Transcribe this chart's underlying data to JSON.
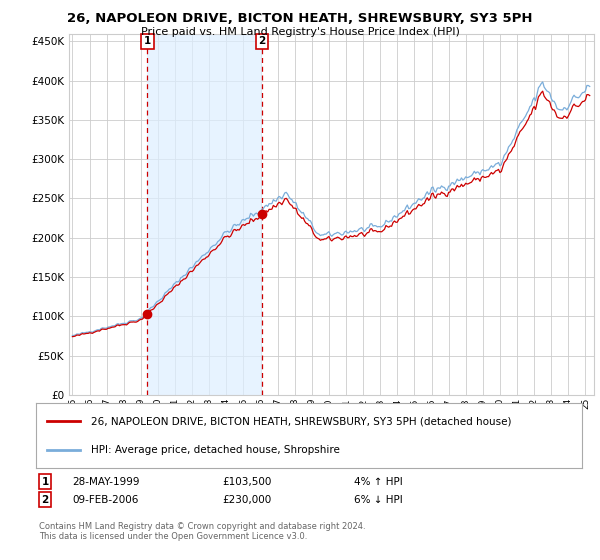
{
  "title_line1": "26, NAPOLEON DRIVE, BICTON HEATH, SHREWSBURY, SY3 5PH",
  "title_line2": "Price paid vs. HM Land Registry's House Price Index (HPI)",
  "hpi_color": "#7aadda",
  "price_color": "#cc0000",
  "shade_color": "#ddeeff",
  "marker_color": "#cc0000",
  "background_color": "#ffffff",
  "grid_color": "#cccccc",
  "ylim": [
    0,
    460000
  ],
  "yticks": [
    0,
    50000,
    100000,
    150000,
    200000,
    250000,
    300000,
    350000,
    400000,
    450000
  ],
  "legend_label_red": "26, NAPOLEON DRIVE, BICTON HEATH, SHREWSBURY, SY3 5PH (detached house)",
  "legend_label_blue": "HPI: Average price, detached house, Shropshire",
  "purchase1_date": "28-MAY-1999",
  "purchase1_price": "£103,500",
  "purchase1_hpi": "4% ↑ HPI",
  "purchase1_year": 1999.38,
  "purchase1_value": 103500,
  "purchase2_date": "09-FEB-2006",
  "purchase2_price": "£230,000",
  "purchase2_hpi": "6% ↓ HPI",
  "purchase2_year": 2006.1,
  "purchase2_value": 230000,
  "footer": "Contains HM Land Registry data © Crown copyright and database right 2024.\nThis data is licensed under the Open Government Licence v3.0."
}
